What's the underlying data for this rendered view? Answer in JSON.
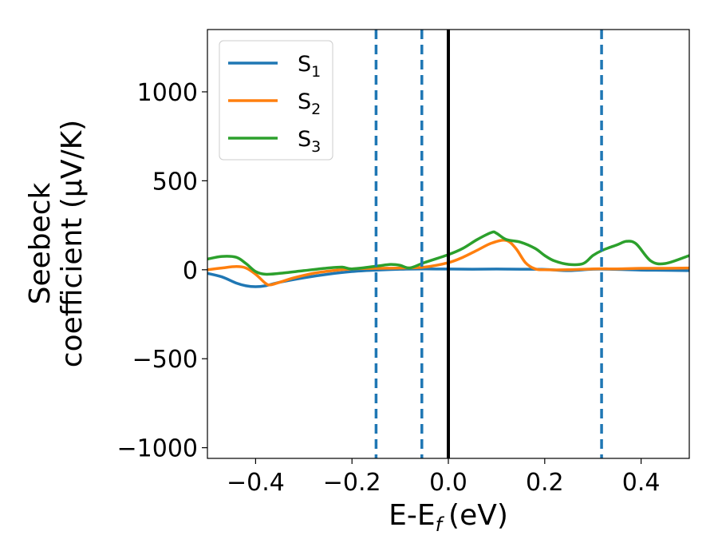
{
  "chart_data": {
    "type": "line",
    "title": "",
    "xlabel": "E-E",
    "xlabel_sub": "f",
    "xlabel_unit": "(eV)",
    "ylabel_line1": "Seebeck",
    "ylabel_line2": "coefficient  (μV/K)",
    "xlim": [
      -0.5,
      0.5
    ],
    "ylim": [
      -1060,
      1350
    ],
    "xticks": [
      -0.4,
      -0.2,
      0.0,
      0.2,
      0.4
    ],
    "xtick_labels": [
      "−0.4",
      "−0.2",
      "0.0",
      "0.2",
      "0.4"
    ],
    "yticks": [
      -1000,
      -500,
      0,
      500,
      1000
    ],
    "ytick_labels": [
      "−1000",
      "−500",
      "0",
      "500",
      "1000"
    ],
    "grid": false,
    "legend_position": "top-left",
    "series": [
      {
        "name": "S",
        "sub": "1",
        "color": "#1f77b4",
        "x": [
          -0.5,
          -0.47,
          -0.44,
          -0.42,
          -0.4,
          -0.38,
          -0.35,
          -0.3,
          -0.25,
          -0.2,
          -0.15,
          -0.1,
          -0.05,
          0.0,
          0.05,
          0.1,
          0.15,
          0.2,
          0.25,
          0.3,
          0.35,
          0.4,
          0.45,
          0.5
        ],
        "y": [
          -20,
          -40,
          -75,
          -90,
          -95,
          -90,
          -70,
          -45,
          -25,
          -10,
          -2,
          3,
          5,
          4,
          3,
          4,
          3,
          2,
          -5,
          3,
          2,
          -2,
          -3,
          -5
        ]
      },
      {
        "name": "S",
        "sub": "2",
        "color": "#ff7f0e",
        "x": [
          -0.5,
          -0.47,
          -0.44,
          -0.42,
          -0.4,
          -0.38,
          -0.37,
          -0.35,
          -0.32,
          -0.28,
          -0.24,
          -0.2,
          -0.15,
          -0.1,
          -0.05,
          0.0,
          0.03,
          0.06,
          0.09,
          0.12,
          0.14,
          0.16,
          0.18,
          0.2,
          0.25,
          0.3,
          0.35,
          0.4,
          0.45,
          0.5
        ],
        "y": [
          0,
          10,
          18,
          10,
          -25,
          -75,
          -85,
          -70,
          -45,
          -20,
          -5,
          5,
          8,
          10,
          15,
          40,
          70,
          110,
          150,
          165,
          120,
          40,
          5,
          0,
          0,
          5,
          5,
          8,
          8,
          10
        ]
      },
      {
        "name": "S",
        "sub": "3",
        "color": "#2ca02c",
        "x": [
          -0.5,
          -0.47,
          -0.44,
          -0.42,
          -0.4,
          -0.38,
          -0.35,
          -0.3,
          -0.25,
          -0.22,
          -0.2,
          -0.15,
          -0.12,
          -0.1,
          -0.08,
          -0.05,
          0.0,
          0.03,
          0.06,
          0.09,
          0.1,
          0.12,
          0.15,
          0.18,
          0.2,
          0.22,
          0.25,
          0.28,
          0.3,
          0.32,
          0.35,
          0.37,
          0.39,
          0.42,
          0.45,
          0.5
        ],
        "y": [
          60,
          75,
          70,
          35,
          -10,
          -25,
          -20,
          -5,
          10,
          15,
          5,
          20,
          30,
          25,
          10,
          40,
          85,
          120,
          170,
          210,
          205,
          170,
          155,
          120,
          80,
          50,
          30,
          35,
          80,
          110,
          140,
          160,
          145,
          50,
          35,
          80
        ]
      }
    ],
    "vlines": [
      {
        "x": -0.15,
        "color": "#1f77b4",
        "style": "dashed"
      },
      {
        "x": -0.055,
        "color": "#1f77b4",
        "style": "dashed"
      },
      {
        "x": 0.0,
        "color": "#000000",
        "style": "solid"
      },
      {
        "x": 0.318,
        "color": "#1f77b4",
        "style": "dashed"
      }
    ]
  }
}
